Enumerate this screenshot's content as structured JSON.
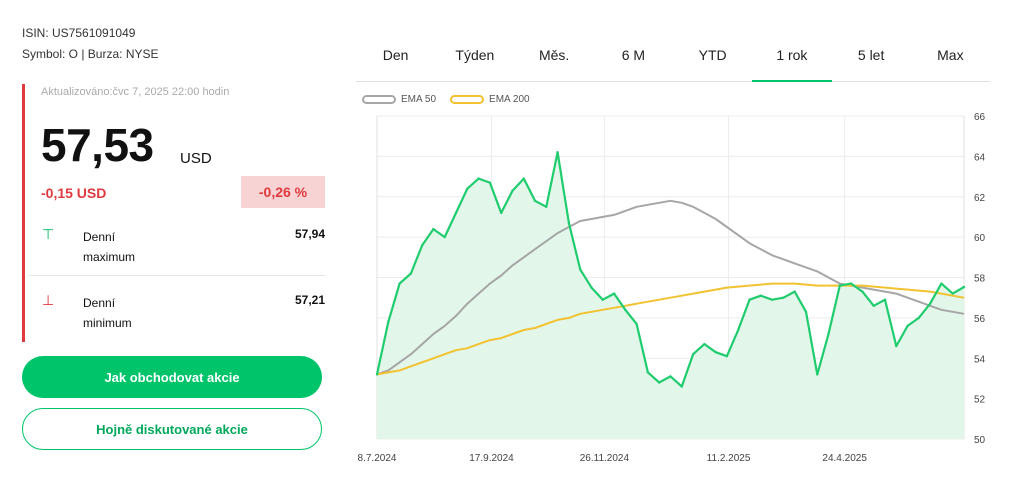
{
  "stock": {
    "isin": "ISIN: US7561091049",
    "symbol_exchange": "Symbol: O | Burza: NYSE",
    "updated": "Aktualizováno:čvc 7, 2025 22:00 hodin",
    "price": "57,53",
    "currency": "USD",
    "change_abs": "-0,15 USD",
    "change_pct": "-0,26 %",
    "accent_up": "#00c46a",
    "accent_down": "#e0393e"
  },
  "stats": {
    "high_label": "Denní maximum",
    "high_value": "57,94",
    "low_label": "Denní minimum",
    "low_value": "57,21"
  },
  "buttons": {
    "primary": "Jak obchodovat akcie",
    "secondary": "Hojně diskutované akcie"
  },
  "tabs": [
    "Den",
    "Týden",
    "Měs.",
    "6 M",
    "YTD",
    "1 rok",
    "5 let",
    "Max"
  ],
  "active_tab": "1 rok",
  "chart_data": {
    "type": "line",
    "x": [
      "2024-07-08",
      "2024-07-15",
      "2024-07-22",
      "2024-07-29",
      "2024-08-05",
      "2024-08-12",
      "2024-08-19",
      "2024-08-26",
      "2024-09-02",
      "2024-09-09",
      "2024-09-16",
      "2024-09-23",
      "2024-09-30",
      "2024-10-07",
      "2024-10-14",
      "2024-10-21",
      "2024-10-28",
      "2024-11-04",
      "2024-11-11",
      "2024-11-18",
      "2024-11-25",
      "2024-12-02",
      "2024-12-09",
      "2024-12-16",
      "2024-12-23",
      "2024-12-30",
      "2025-01-06",
      "2025-01-13",
      "2025-01-20",
      "2025-01-27",
      "2025-02-03",
      "2025-02-10",
      "2025-02-17",
      "2025-02-24",
      "2025-03-03",
      "2025-03-10",
      "2025-03-17",
      "2025-03-24",
      "2025-03-31",
      "2025-04-07",
      "2025-04-14",
      "2025-04-21",
      "2025-04-28",
      "2025-05-05",
      "2025-05-12",
      "2025-05-19",
      "2025-05-26",
      "2025-06-02",
      "2025-06-09",
      "2025-06-16",
      "2025-06-23",
      "2025-06-30",
      "2025-07-07"
    ],
    "x_tick_labels": [
      "8.7.2024",
      "17.9.2024",
      "26.11.2024",
      "11.2.2025",
      "24.4.2025"
    ],
    "series": [
      {
        "name": "",
        "color": "#1fcc6e",
        "fill": "#e2f6ea",
        "values": [
          53.2,
          55.8,
          57.7,
          58.2,
          59.6,
          60.4,
          60.0,
          61.2,
          62.4,
          62.9,
          62.7,
          61.2,
          62.3,
          62.9,
          61.8,
          61.5,
          64.2,
          60.7,
          58.4,
          57.5,
          56.9,
          57.2,
          56.4,
          55.7,
          53.3,
          52.8,
          53.1,
          52.6,
          54.2,
          54.7,
          54.3,
          54.1,
          55.4,
          56.9,
          57.1,
          56.9,
          57.0,
          57.3,
          56.3,
          53.2,
          55.2,
          57.6,
          57.7,
          57.3,
          56.6,
          56.9,
          54.6,
          55.6,
          56.0,
          56.7,
          57.7,
          57.2,
          57.53
        ]
      },
      {
        "name": "EMA 50",
        "color": "#a6a6a6",
        "values": [
          53.2,
          53.4,
          53.8,
          54.2,
          54.7,
          55.2,
          55.6,
          56.1,
          56.7,
          57.2,
          57.7,
          58.1,
          58.6,
          59.0,
          59.4,
          59.8,
          60.2,
          60.5,
          60.8,
          60.9,
          61.0,
          61.1,
          61.3,
          61.5,
          61.6,
          61.7,
          61.8,
          61.7,
          61.5,
          61.2,
          60.9,
          60.5,
          60.1,
          59.7,
          59.4,
          59.1,
          58.9,
          58.7,
          58.5,
          58.3,
          58.0,
          57.7,
          57.6,
          57.5,
          57.4,
          57.3,
          57.2,
          57.0,
          56.8,
          56.6,
          56.4,
          56.3,
          56.2
        ]
      },
      {
        "name": "EMA 200",
        "color": "#f2c230",
        "values": [
          53.2,
          53.3,
          53.4,
          53.6,
          53.8,
          54.0,
          54.2,
          54.4,
          54.5,
          54.7,
          54.9,
          55.0,
          55.2,
          55.4,
          55.5,
          55.7,
          55.9,
          56.0,
          56.2,
          56.3,
          56.4,
          56.5,
          56.6,
          56.7,
          56.8,
          56.9,
          57.0,
          57.1,
          57.2,
          57.3,
          57.4,
          57.5,
          57.55,
          57.6,
          57.65,
          57.7,
          57.7,
          57.7,
          57.65,
          57.6,
          57.6,
          57.6,
          57.6,
          57.6,
          57.55,
          57.5,
          57.45,
          57.4,
          57.35,
          57.3,
          57.2,
          57.1,
          57.0
        ]
      }
    ],
    "legend": [
      "EMA 50",
      "EMA 200"
    ],
    "ylim": [
      50,
      66
    ],
    "y_ticks": [
      50,
      52,
      54,
      56,
      58,
      60,
      62,
      64,
      66
    ],
    "y_axis_position": "right",
    "grid": true
  }
}
